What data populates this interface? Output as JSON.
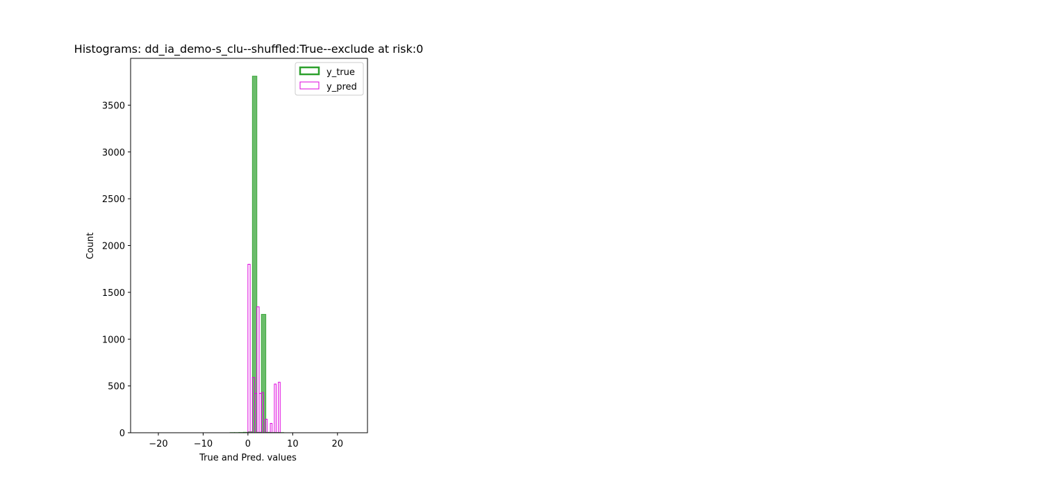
{
  "chart_data": {
    "type": "bar",
    "title": "Histograms: dd_ia_demo-s_clu--shuffled:True--exclude at risk:0",
    "xlabel": "True and Pred. values",
    "ylabel": "Count",
    "xlim": [
      -26.2,
      26.7
    ],
    "ylim": [
      0,
      4000
    ],
    "xticks": [
      -20,
      -10,
      0,
      10,
      20
    ],
    "xtick_labels": [
      "−20",
      "−10",
      "0",
      "10",
      "20"
    ],
    "yticks": [
      0,
      500,
      1000,
      1500,
      2000,
      2500,
      3000,
      3500
    ],
    "ytick_labels": [
      "0",
      "500",
      "1000",
      "1500",
      "2000",
      "2500",
      "3000",
      "3500"
    ],
    "grid": false,
    "legend_position": "top-right",
    "series": [
      {
        "name": "y_true",
        "style": "filled",
        "color": "#2ca02c",
        "bins": [
          {
            "x0": -4,
            "x1": -3,
            "y": 2
          },
          {
            "x0": -3,
            "x1": -2,
            "y": 2
          },
          {
            "x0": -2,
            "x1": -1,
            "y": 3
          },
          {
            "x0": -1,
            "x1": 0,
            "y": 5
          },
          {
            "x0": 0,
            "x1": 1,
            "y": 10
          },
          {
            "x0": 1,
            "x1": 2,
            "y": 3810
          },
          {
            "x0": 2,
            "x1": 3,
            "y": 5
          },
          {
            "x0": 3,
            "x1": 4,
            "y": 1265
          },
          {
            "x0": 4,
            "x1": 5,
            "y": 5
          },
          {
            "x0": 5,
            "x1": 6,
            "y": 3
          },
          {
            "x0": 6,
            "x1": 7,
            "y": 3
          },
          {
            "x0": 7,
            "x1": 8,
            "y": 2
          }
        ]
      },
      {
        "name": "y_pred",
        "style": "outline",
        "color": "#dd00dd",
        "bins": [
          {
            "x0": 0.0,
            "x1": 0.5,
            "y": 1800
          },
          {
            "x0": 1.0,
            "x1": 1.5,
            "y": 590
          },
          {
            "x0": 1.5,
            "x1": 2.0,
            "y": 420
          },
          {
            "x0": 2.0,
            "x1": 2.5,
            "y": 1345
          },
          {
            "x0": 2.5,
            "x1": 3.0,
            "y": 420
          },
          {
            "x0": 3.0,
            "x1": 3.5,
            "y": 430
          },
          {
            "x0": 3.9,
            "x1": 4.3,
            "y": 145
          },
          {
            "x0": 5.0,
            "x1": 5.4,
            "y": 100
          },
          {
            "x0": 5.9,
            "x1": 6.3,
            "y": 520
          },
          {
            "x0": 6.8,
            "x1": 7.2,
            "y": 540
          }
        ]
      }
    ]
  }
}
